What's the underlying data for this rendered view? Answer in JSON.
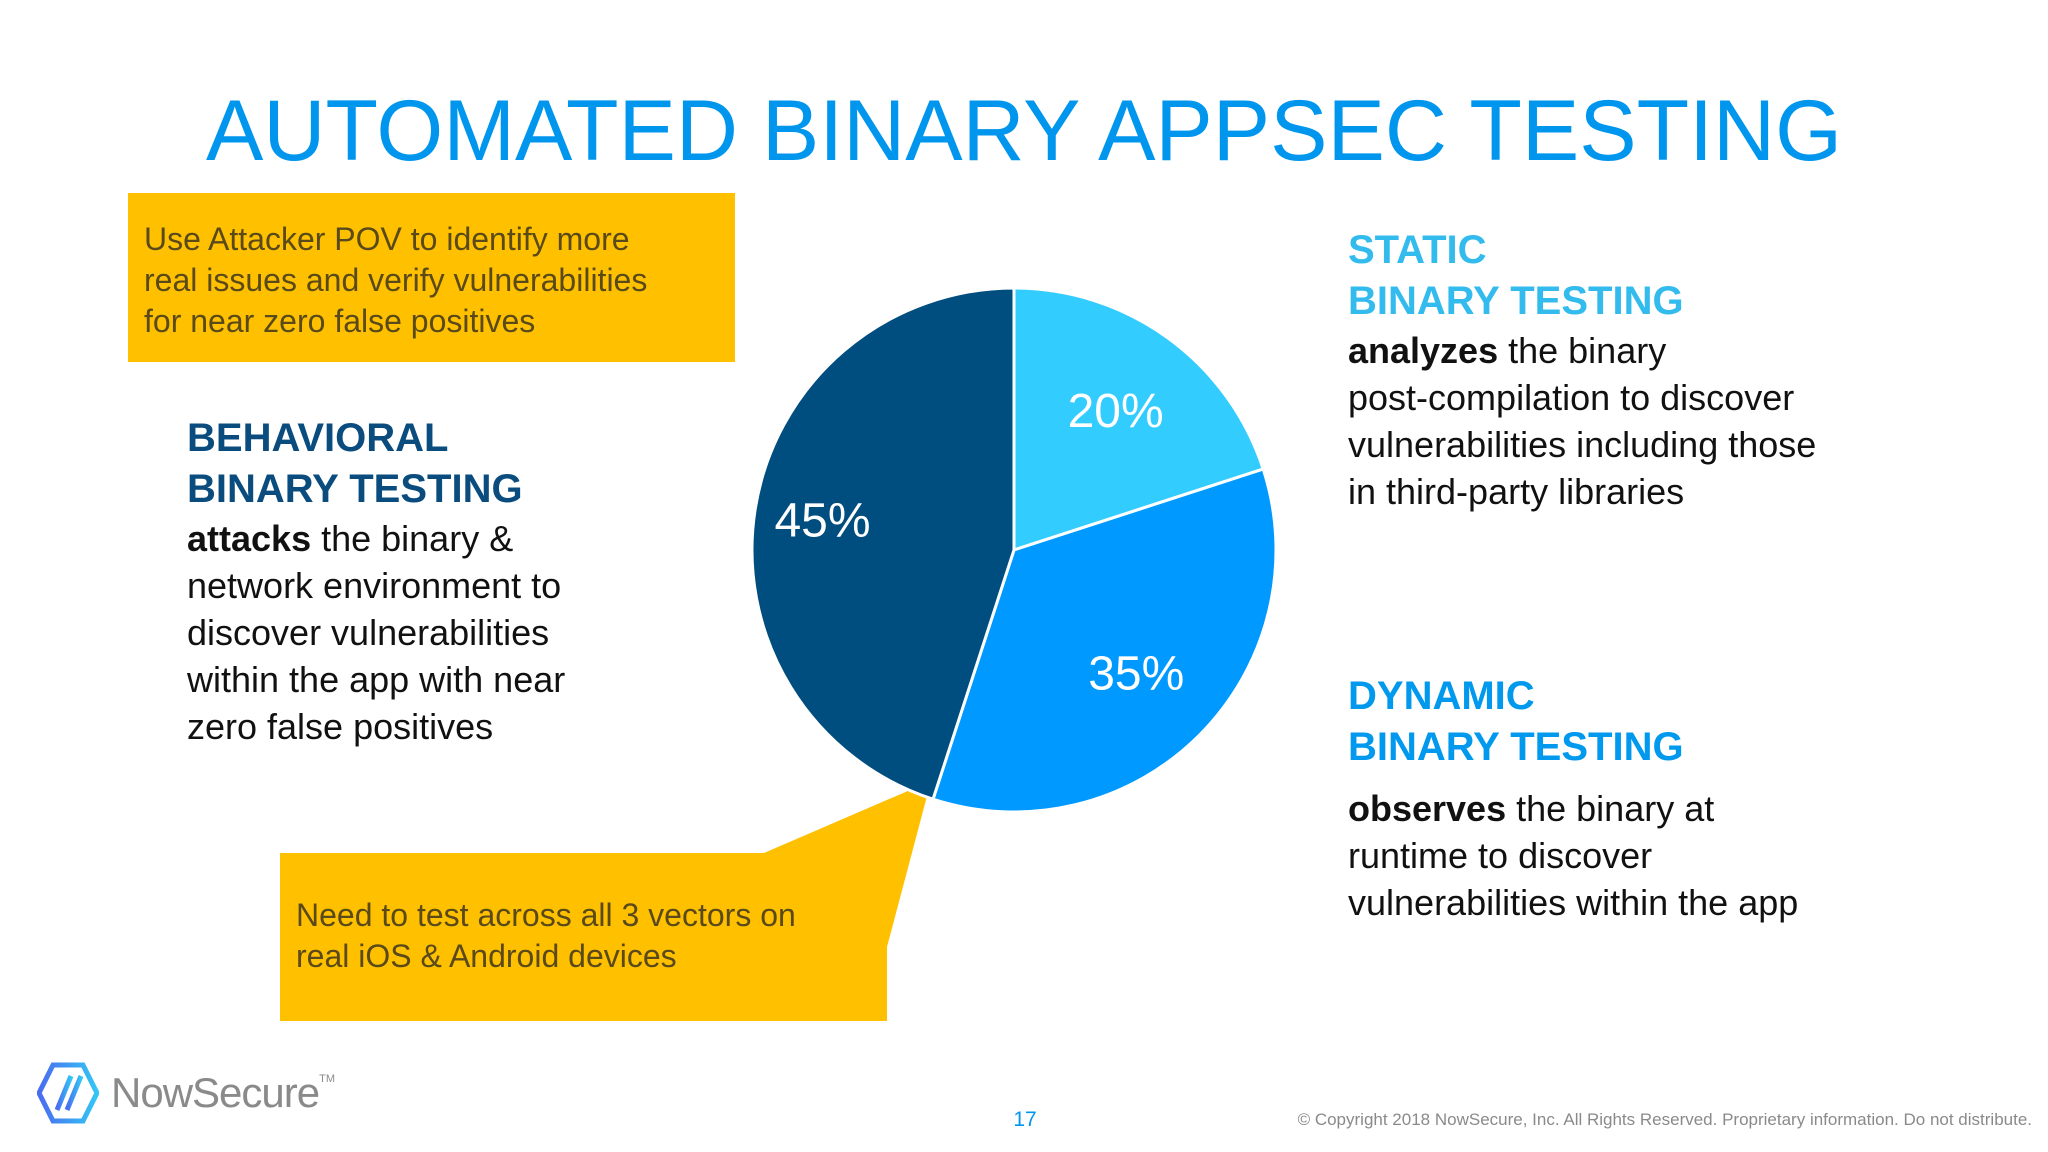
{
  "title": "AUTOMATED BINARY APPSEC TESTING",
  "callout_top": {
    "lines": [
      "Use Attacker POV to identify more",
      "real issues and verify vulnerabilities",
      "for near zero false positives"
    ]
  },
  "callout_bottom": {
    "lines": [
      "Need to test across all 3 vectors on",
      "real iOS & Android devices"
    ]
  },
  "behavioral": {
    "heading": [
      "BEHAVIORAL",
      "BINARY TESTING"
    ],
    "bold": "attacks",
    "lines": [
      " the binary &",
      "network environment to",
      "discover vulnerabilities",
      "within the app with near",
      "zero false positives"
    ]
  },
  "static": {
    "heading": [
      "STATIC",
      "BINARY TESTING"
    ],
    "bold": "analyzes",
    "lines": [
      " the binary",
      "post-compilation to discover",
      "vulnerabilities including those",
      "in third-party libraries"
    ]
  },
  "dynamic": {
    "heading": [
      "DYNAMIC",
      "BINARY TESTING"
    ],
    "bold": "observes",
    "lines": [
      " the binary at",
      "runtime to discover",
      "vulnerabilities within the app"
    ]
  },
  "chart_data": {
    "type": "pie",
    "start": "top, clockwise",
    "slices": [
      {
        "name": "static",
        "label": "20%",
        "value": 20,
        "color": "#33CCFF"
      },
      {
        "name": "dynamic",
        "label": "35%",
        "value": 35,
        "color": "#0099FF"
      },
      {
        "name": "behavioral",
        "label": "45%",
        "value": 45,
        "color": "#004D7F"
      }
    ]
  },
  "colors": {
    "accent": "#0096EE",
    "callout": "#FFC000"
  },
  "footer": {
    "brand": "NowSecure",
    "trademark": "TM",
    "page_number": "17",
    "copyright": "© Copyright 2018 NowSecure, Inc. All Rights Reserved. Proprietary information. Do not distribute."
  }
}
